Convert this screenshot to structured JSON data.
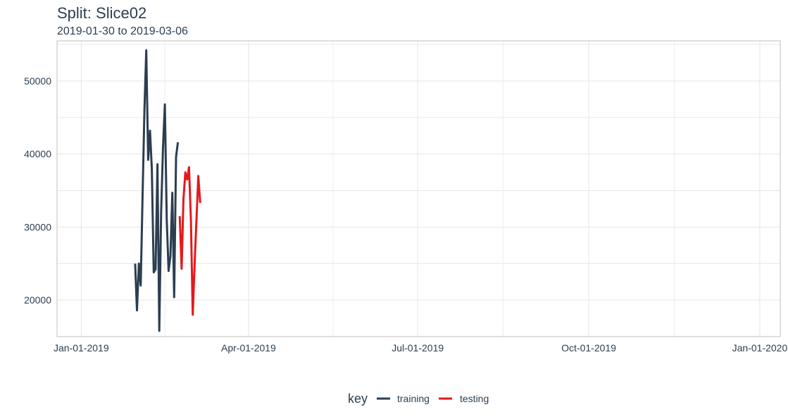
{
  "chart_data": {
    "type": "line",
    "title": "Split: Slice02",
    "subtitle": "2019-01-30 to 2019-03-06",
    "xlabel": "",
    "ylabel": "",
    "x_ticks": [
      "Jan-01-2019",
      "Apr-01-2019",
      "Jul-01-2019",
      "Oct-01-2019",
      "Jan-01-2020"
    ],
    "x_tick_dates": [
      "2019-01-01",
      "2019-04-01",
      "2019-07-01",
      "2019-10-01",
      "2020-01-01"
    ],
    "y_ticks": [
      20000,
      30000,
      40000,
      50000
    ],
    "xlim": [
      "2018-12-19",
      "2020-01-12"
    ],
    "ylim": [
      15000,
      55500
    ],
    "grid": true,
    "legend": {
      "title": "key",
      "position": "bottom",
      "entries": [
        {
          "label": "training",
          "color": "#2c3e50"
        },
        {
          "label": "testing",
          "color": "#e31a1c"
        }
      ]
    },
    "series": [
      {
        "name": "training",
        "color": "#2c3e50",
        "points": [
          [
            "2019-01-30",
            25000
          ],
          [
            "2019-01-31",
            18600
          ],
          [
            "2019-02-01",
            25000
          ],
          [
            "2019-02-02",
            22000
          ],
          [
            "2019-02-03",
            34000
          ],
          [
            "2019-02-04",
            46000
          ],
          [
            "2019-02-05",
            54200
          ],
          [
            "2019-02-06",
            39200
          ],
          [
            "2019-02-07",
            43200
          ],
          [
            "2019-02-08",
            38000
          ],
          [
            "2019-02-09",
            23800
          ],
          [
            "2019-02-10",
            24200
          ],
          [
            "2019-02-11",
            38600
          ],
          [
            "2019-02-12",
            15800
          ],
          [
            "2019-02-13",
            32000
          ],
          [
            "2019-02-14",
            41000
          ],
          [
            "2019-02-15",
            46800
          ],
          [
            "2019-02-16",
            31000
          ],
          [
            "2019-02-17",
            24000
          ],
          [
            "2019-02-18",
            26000
          ],
          [
            "2019-02-19",
            34700
          ],
          [
            "2019-02-20",
            20400
          ],
          [
            "2019-02-21",
            39600
          ],
          [
            "2019-02-22",
            41600
          ]
        ]
      },
      {
        "name": "testing",
        "color": "#e31a1c",
        "points": [
          [
            "2019-02-23",
            31500
          ],
          [
            "2019-02-24",
            24300
          ],
          [
            "2019-02-25",
            33800
          ],
          [
            "2019-02-26",
            37500
          ],
          [
            "2019-02-27",
            36500
          ],
          [
            "2019-02-28",
            38200
          ],
          [
            "2019-03-01",
            31000
          ],
          [
            "2019-03-02",
            18000
          ],
          [
            "2019-03-03",
            25000
          ],
          [
            "2019-03-04",
            31000
          ],
          [
            "2019-03-05",
            37000
          ],
          [
            "2019-03-06",
            33300
          ]
        ]
      }
    ]
  }
}
